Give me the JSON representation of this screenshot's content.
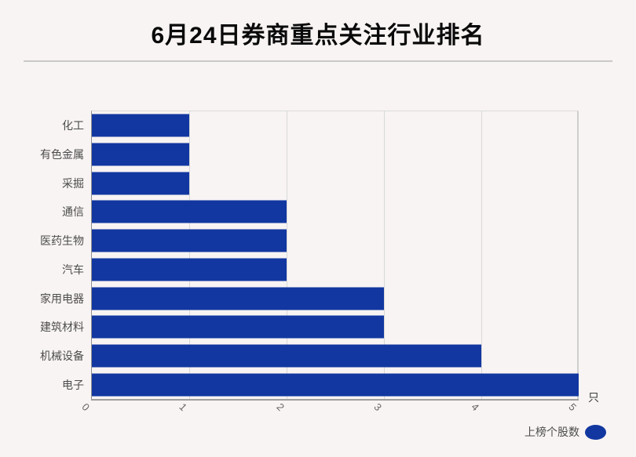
{
  "title": "6月24日券商重点关注行业排名",
  "axis_unit": "只",
  "legend": {
    "label": "上榜个股数"
  },
  "colors": {
    "bar": "#1237a0",
    "background": "#f8f4f3",
    "gridline": "#d9d9d9",
    "title_text": "#0a0a0a",
    "label_text": "#4c4c4c"
  },
  "chart_data": {
    "type": "bar",
    "orientation": "horizontal",
    "title": "6月24日券商重点关注行业排名",
    "categories": [
      "化工",
      "有色金属",
      "采掘",
      "通信",
      "医药生物",
      "汽车",
      "家用电器",
      "建筑材料",
      "机械设备",
      "电子"
    ],
    "values": [
      1,
      1,
      1,
      2,
      2,
      2,
      3,
      3,
      4,
      5
    ],
    "series_name": "上榜个股数",
    "value_unit": "只",
    "xlim": [
      0,
      5
    ],
    "xticks": [
      0,
      1,
      2,
      3,
      4,
      5
    ],
    "xtick_rotation": 45,
    "grid": true,
    "legend_position": "bottom-right"
  }
}
